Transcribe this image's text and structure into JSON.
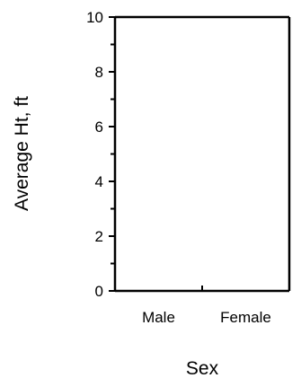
{
  "chart_data": {
    "type": "bar",
    "title": "",
    "xlabel": "Sex",
    "ylabel": "Average Ht, ft",
    "categories": [
      "Male",
      "Female"
    ],
    "series": [],
    "ylim": [
      0,
      10
    ],
    "y_major_ticks": [
      0,
      2,
      4,
      6,
      8,
      10
    ],
    "y_minor_step": 1,
    "grid": false,
    "legend": "none",
    "colors": {
      "axis": "#000000",
      "background": "#ffffff"
    }
  }
}
